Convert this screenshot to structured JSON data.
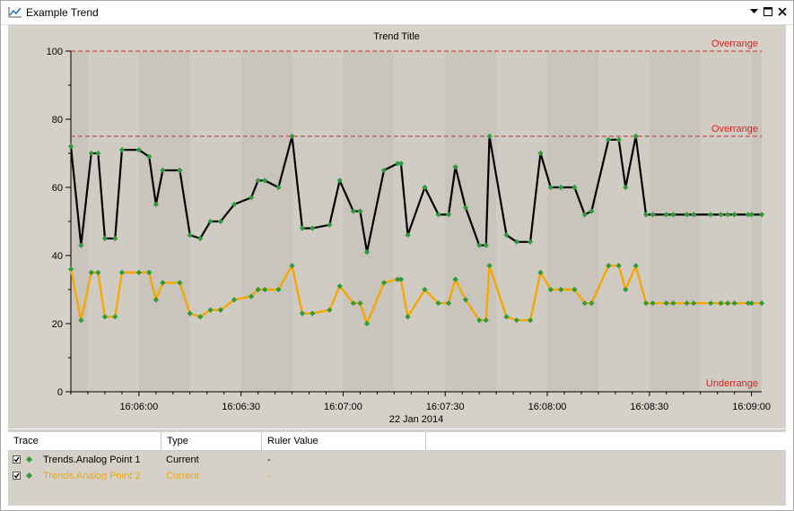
{
  "window": {
    "title": "Example Trend"
  },
  "chart": {
    "title": "Trend Title",
    "date_label": "22 Jan 2014"
  },
  "colors": {
    "series1": "#000000",
    "series2": "#f5a800",
    "limit": "#e02020",
    "marker": "#2f9a3a",
    "plot_band_dark": "#c9c4bc",
    "plot_band_light": "#d0cbc3"
  },
  "chart_data": {
    "type": "line",
    "title": "Trend Title",
    "xlabel": "22 Jan 2014",
    "ylabel": "",
    "ylim": [
      0,
      100
    ],
    "y_ticks": [
      "0",
      "20",
      "40",
      "60",
      "80",
      "100"
    ],
    "x_range": [
      "16:05:40",
      "16:09:03"
    ],
    "x_ticks": [
      "16:06:00",
      "16:06:30",
      "16:07:00",
      "16:07:30",
      "16:08:00",
      "16:08:30",
      "16:09:00"
    ],
    "limits": [
      {
        "label": "Overrange",
        "value": 100
      },
      {
        "label": "Overrange",
        "value": 75
      },
      {
        "label": "Underrange",
        "value": 0
      }
    ],
    "grid": false,
    "x": [
      "16:05:40",
      "16:05:43",
      "16:05:46",
      "16:05:48",
      "16:05:50",
      "16:05:53",
      "16:05:55",
      "16:06:00",
      "16:06:03",
      "16:06:05",
      "16:06:07",
      "16:06:12",
      "16:06:15",
      "16:06:18",
      "16:06:21",
      "16:06:24",
      "16:06:28",
      "16:06:33",
      "16:06:35",
      "16:06:37",
      "16:06:41",
      "16:06:45",
      "16:06:48",
      "16:06:51",
      "16:06:56",
      "16:06:59",
      "16:07:03",
      "16:07:05",
      "16:07:07",
      "16:07:12",
      "16:07:16",
      "16:07:17",
      "16:07:19",
      "16:07:24",
      "16:07:28",
      "16:07:31",
      "16:07:33",
      "16:07:36",
      "16:07:40",
      "16:07:42",
      "16:07:43",
      "16:07:48",
      "16:07:51",
      "16:07:55",
      "16:07:58",
      "16:08:01",
      "16:08:04",
      "16:08:08",
      "16:08:11",
      "16:08:13",
      "16:08:18",
      "16:08:21",
      "16:08:23",
      "16:08:26",
      "16:08:29",
      "16:08:31",
      "16:08:35",
      "16:08:37",
      "16:08:41",
      "16:08:43",
      "16:08:48",
      "16:08:51",
      "16:08:53",
      "16:08:55",
      "16:08:59",
      "16:09:00",
      "16:09:03"
    ],
    "series": [
      {
        "name": "Trends.Analog Point 1",
        "values": [
          72,
          43,
          70,
          70,
          45,
          45,
          71,
          71,
          69,
          55,
          65,
          65,
          46,
          45,
          50,
          50,
          55,
          57,
          62,
          62,
          60,
          75,
          48,
          48,
          49,
          62,
          53,
          53,
          41,
          65,
          67,
          67,
          46,
          60,
          52,
          52,
          66,
          54,
          43,
          43,
          75,
          46,
          44,
          44,
          70,
          60,
          60,
          60,
          52,
          53,
          74,
          74,
          60,
          75,
          52,
          52,
          52,
          52,
          52,
          52,
          52,
          52,
          52,
          52,
          52,
          52,
          52
        ]
      },
      {
        "name": "Trends.Analog Point 2",
        "values": [
          36,
          21,
          35,
          35,
          22,
          22,
          35,
          35,
          35,
          27,
          32,
          32,
          23,
          22,
          24,
          24,
          27,
          28,
          30,
          30,
          30,
          37,
          23,
          23,
          24,
          31,
          26,
          26,
          20,
          32,
          33,
          33,
          22,
          30,
          26,
          26,
          33,
          27,
          21,
          21,
          37,
          22,
          21,
          21,
          35,
          30,
          30,
          30,
          26,
          26,
          37,
          37,
          30,
          37,
          26,
          26,
          26,
          26,
          26,
          26,
          26,
          26,
          26,
          26,
          26,
          26,
          26
        ]
      }
    ]
  },
  "grid": {
    "columns": [
      "Trace",
      "Type",
      "Ruler Value"
    ],
    "rows": [
      {
        "trace": "Trends.Analog Point 1",
        "type": "Current",
        "ruler": "-",
        "color": "#000000"
      },
      {
        "trace": "Trends.Analog Point 2",
        "type": "Current",
        "ruler": "-",
        "color": "#f5a800"
      }
    ]
  }
}
